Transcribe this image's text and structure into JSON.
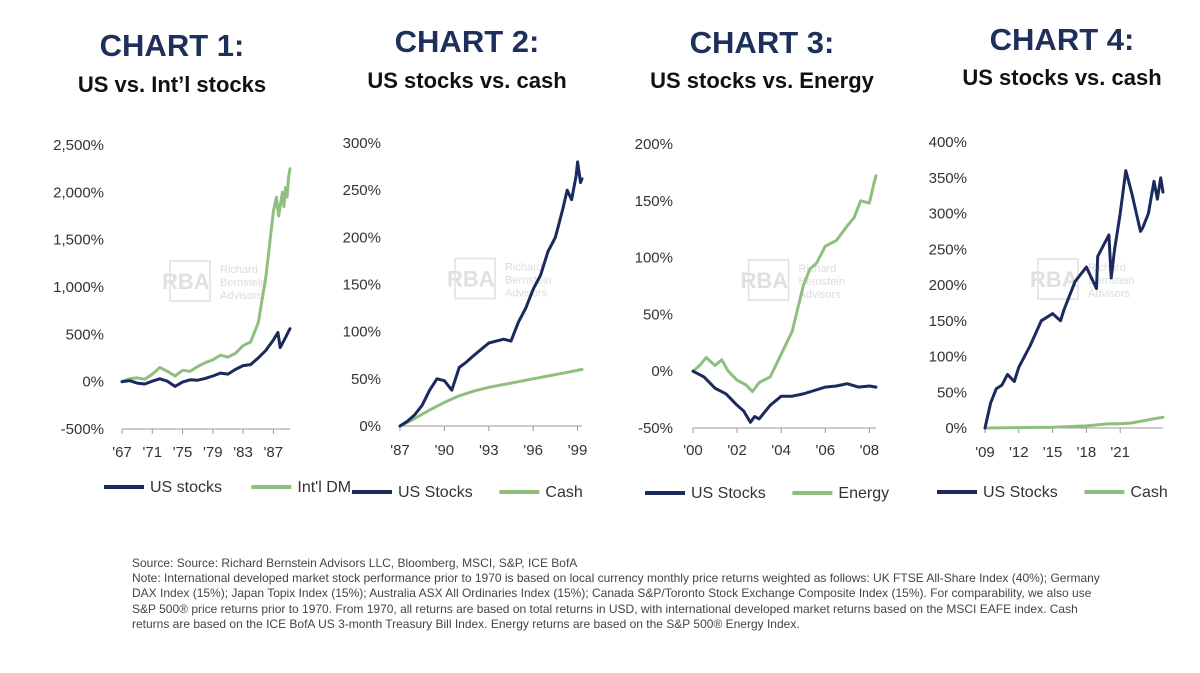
{
  "colors": {
    "navy": "#1b2a5e",
    "green": "#8fbf7f",
    "heading": "#1f2f5c",
    "watermark": "#c8c8c8"
  },
  "watermark": {
    "mark": "RBA",
    "lines": [
      "Richard",
      "Bernstein",
      "Advisors"
    ]
  },
  "chart_data": [
    {
      "type": "line",
      "heading": "CHART 1:",
      "title": "US vs. Int’l stocks",
      "y_unit": "%",
      "ylim": [
        -500,
        2500
      ],
      "y_ticks": [
        -500,
        0,
        500,
        1000,
        1500,
        2000,
        2500
      ],
      "y_tick_labels": [
        "-500%",
        "0%",
        "500%",
        "1,000%",
        "1,500%",
        "2,000%",
        "2,500%"
      ],
      "xlim": [
        1967,
        1989.2
      ],
      "x_ticks": [
        1967,
        1971,
        1975,
        1979,
        1983,
        1987
      ],
      "x_tick_labels": [
        "'67",
        "'71",
        "'75",
        "'79",
        "'83",
        "'87"
      ],
      "grid": false,
      "legend_position": "bottom",
      "series": [
        {
          "name": "US stocks",
          "color": "navy",
          "x": [
            1967,
            1968,
            1969,
            1970,
            1971,
            1972,
            1973,
            1974,
            1975,
            1976,
            1977,
            1978,
            1979,
            1980,
            1981,
            1982,
            1983,
            1984,
            1985,
            1986,
            1987,
            1987.6,
            1987.9,
            1988.3,
            1988.7,
            1989,
            1989.2
          ],
          "y": [
            0,
            10,
            -15,
            -25,
            5,
            30,
            5,
            -50,
            -5,
            20,
            15,
            35,
            60,
            90,
            80,
            130,
            170,
            180,
            250,
            330,
            440,
            520,
            360,
            420,
            480,
            530,
            560
          ]
        },
        {
          "name": "Int'l DM",
          "color": "green",
          "x": [
            1967,
            1968,
            1969,
            1970,
            1971,
            1972,
            1973,
            1974,
            1975,
            1976,
            1977,
            1978,
            1979,
            1980,
            1981,
            1982,
            1983,
            1984,
            1985,
            1986,
            1986.5,
            1987,
            1987.4,
            1987.7,
            1988,
            1988.2,
            1988.4,
            1988.6,
            1988.8,
            1989,
            1989.2
          ],
          "y": [
            0,
            30,
            40,
            25,
            80,
            150,
            110,
            60,
            120,
            110,
            160,
            200,
            230,
            280,
            260,
            300,
            380,
            420,
            620,
            1100,
            1450,
            1800,
            1950,
            1750,
            1900,
            2000,
            1850,
            2050,
            1950,
            2150,
            2250
          ]
        }
      ]
    },
    {
      "type": "line",
      "heading": "CHART 2:",
      "title": "US stocks vs. cash",
      "y_unit": "%",
      "ylim": [
        0,
        300
      ],
      "y_ticks": [
        0,
        50,
        100,
        150,
        200,
        250,
        300
      ],
      "y_tick_labels": [
        "0%",
        "50%",
        "100%",
        "150%",
        "200%",
        "250%",
        "300%"
      ],
      "xlim": [
        1987,
        1999.3
      ],
      "x_ticks": [
        1987,
        1990,
        1993,
        1996,
        1999
      ],
      "x_tick_labels": [
        "'87",
        "'90",
        "'93",
        "'96",
        "'99"
      ],
      "grid": false,
      "legend_position": "bottom",
      "series": [
        {
          "name": "US Stocks",
          "color": "navy",
          "x": [
            1987,
            1987.5,
            1988,
            1988.5,
            1989,
            1989.5,
            1990,
            1990.5,
            1991,
            1991.5,
            1992,
            1993,
            1994,
            1994.5,
            1995,
            1995.5,
            1996,
            1996.5,
            1997,
            1997.5,
            1998,
            1998.3,
            1998.6,
            1998.9,
            1999,
            1999.2,
            1999.3
          ],
          "y": [
            0,
            5,
            12,
            22,
            38,
            50,
            48,
            38,
            62,
            68,
            75,
            88,
            92,
            90,
            110,
            125,
            145,
            160,
            185,
            200,
            230,
            250,
            240,
            265,
            280,
            258,
            262
          ]
        },
        {
          "name": "Cash",
          "color": "green",
          "x": [
            1987,
            1988,
            1989,
            1990,
            1991,
            1992,
            1993,
            1994,
            1995,
            1996,
            1997,
            1998,
            1999,
            1999.3
          ],
          "y": [
            0,
            8,
            17,
            25,
            32,
            37,
            41,
            44,
            47,
            50,
            53,
            56,
            59,
            60
          ]
        }
      ]
    },
    {
      "type": "line",
      "heading": "CHART 3:",
      "title": "US stocks vs. Energy",
      "y_unit": "%",
      "ylim": [
        -50,
        200
      ],
      "y_ticks": [
        -50,
        0,
        50,
        100,
        150,
        200
      ],
      "y_tick_labels": [
        "-50%",
        "0%",
        "50%",
        "100%",
        "150%",
        "200%"
      ],
      "xlim": [
        2000,
        2008.3
      ],
      "x_ticks": [
        2000,
        2002,
        2004,
        2006,
        2008
      ],
      "x_tick_labels": [
        "'00",
        "'02",
        "'04",
        "'06",
        "'08"
      ],
      "grid": false,
      "legend_position": "bottom",
      "series": [
        {
          "name": "US Stocks",
          "color": "navy",
          "x": [
            2000,
            2000.5,
            2001,
            2001.5,
            2002,
            2002.3,
            2002.6,
            2002.8,
            2003,
            2003.5,
            2004,
            2004.5,
            2005,
            2005.5,
            2006,
            2006.5,
            2007,
            2007.5,
            2008,
            2008.3
          ],
          "y": [
            0,
            -5,
            -15,
            -20,
            -30,
            -35,
            -45,
            -40,
            -42,
            -30,
            -22,
            -22,
            -20,
            -17,
            -14,
            -13,
            -11,
            -14,
            -13,
            -14
          ]
        },
        {
          "name": "Energy",
          "color": "green",
          "x": [
            2000,
            2000.3,
            2000.6,
            2001,
            2001.3,
            2001.6,
            2002,
            2002.4,
            2002.7,
            2003,
            2003.5,
            2004,
            2004.5,
            2005,
            2005.3,
            2005.6,
            2006,
            2006.5,
            2007,
            2007.3,
            2007.6,
            2008,
            2008.2,
            2008.3
          ],
          "y": [
            0,
            5,
            12,
            5,
            10,
            0,
            -8,
            -12,
            -18,
            -10,
            -5,
            15,
            35,
            75,
            90,
            95,
            110,
            115,
            128,
            135,
            150,
            148,
            165,
            172
          ]
        }
      ]
    },
    {
      "type": "line",
      "heading": "CHART 4:",
      "title": "US stocks vs. cash",
      "y_unit": "%",
      "ylim": [
        0,
        400
      ],
      "y_ticks": [
        0,
        50,
        100,
        150,
        200,
        250,
        300,
        350,
        400
      ],
      "y_tick_labels": [
        "0%",
        "50%",
        "100%",
        "150%",
        "200%",
        "250%",
        "300%",
        "350%",
        "400%"
      ],
      "xlim": [
        2009,
        2024.8
      ],
      "x_ticks": [
        2009,
        2012,
        2015,
        2018,
        2021
      ],
      "x_tick_labels": [
        "'09",
        "'12",
        "'15",
        "'18",
        "'21"
      ],
      "grid": false,
      "legend_position": "bottom",
      "series": [
        {
          "name": "US Stocks",
          "color": "navy",
          "x": [
            2009,
            2009.5,
            2010,
            2010.5,
            2011,
            2011.6,
            2012,
            2013,
            2014,
            2015,
            2015.7,
            2016,
            2017,
            2018,
            2018.9,
            2019,
            2020,
            2020.2,
            2020.5,
            2021,
            2021.5,
            2022,
            2022.8,
            2023,
            2023.5,
            2024,
            2024.3,
            2024.6,
            2024.8
          ],
          "y": [
            0,
            35,
            55,
            60,
            75,
            65,
            85,
            115,
            150,
            160,
            150,
            165,
            205,
            225,
            195,
            240,
            270,
            210,
            250,
            300,
            360,
            330,
            275,
            280,
            300,
            345,
            320,
            350,
            330
          ]
        },
        {
          "name": "Cash",
          "color": "green",
          "x": [
            2009,
            2012,
            2015,
            2018,
            2020,
            2021,
            2022,
            2023,
            2024,
            2024.8
          ],
          "y": [
            0,
            0.5,
            1,
            3,
            6,
            6,
            7,
            10,
            13,
            15
          ]
        }
      ]
    }
  ],
  "source": {
    "line": "Source: Source: Richard Bernstein Advisors LLC, Bloomberg, MSCI, S&P, ICE BofA",
    "note": "Note: International developed market stock performance prior to 1970 is based on local currency monthly price returns weighted as follows: UK FTSE All-Share Index (40%); Germany DAX Index (15%); Japan Topix Index (15%); Australia ASX All Ordinaries Index (15%); Canada S&P/Toronto Stock Exchange Composite Index (15%). For comparability, we also use S&P 500® price returns prior to 1970. From 1970, all returns are based on total returns in USD, with international developed market returns based on the MSCI EAFE index. Cash returns are based on the ICE BofA US 3-month Treasury Bill Index. Energy returns are based on the S&P 500® Energy Index."
  }
}
